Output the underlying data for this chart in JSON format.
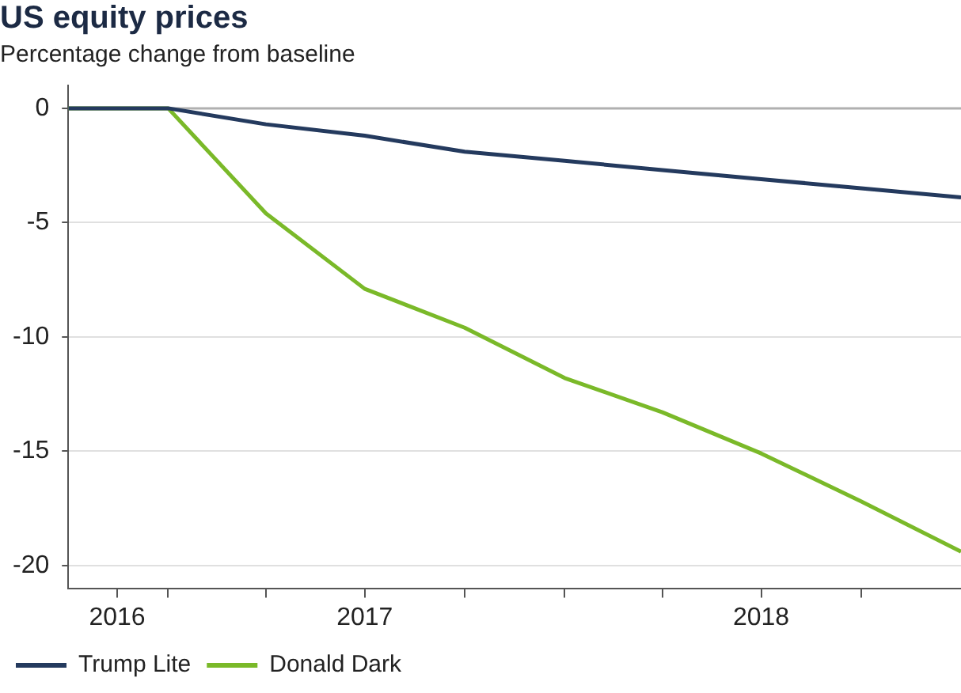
{
  "chart_data": {
    "type": "line",
    "title": "US equity prices",
    "subtitle": "Percentage change from baseline",
    "x": [
      "2016-10",
      "2017-01",
      "2017-04",
      "2017-07",
      "2017-10",
      "2018-01",
      "2018-04",
      "2018-07",
      "2018-10",
      "2019-01"
    ],
    "series": [
      {
        "name": "Trump Lite",
        "color": "#243a5e",
        "values": [
          0,
          0,
          -0.7,
          -1.2,
          -1.9,
          -2.3,
          -2.7,
          -3.1,
          -3.5,
          -3.9
        ]
      },
      {
        "name": "Donald Dark",
        "color": "#7ab929",
        "values": [
          0,
          0,
          -4.6,
          -7.9,
          -9.6,
          -11.8,
          -13.3,
          -15.1,
          -17.2,
          -19.4
        ]
      }
    ],
    "xlim": [
      "2016-10",
      "2019-01"
    ],
    "xticks": [
      {
        "value": "2016-11-15",
        "label": "2016"
      },
      {
        "value": "2017-01",
        "label": null
      },
      {
        "value": "2017-04",
        "label": null
      },
      {
        "value": "2017-07",
        "label": "2017"
      },
      {
        "value": "2017-10",
        "label": null
      },
      {
        "value": "2018-01",
        "label": null
      },
      {
        "value": "2018-04",
        "label": null
      },
      {
        "value": "2018-07",
        "label": "2018"
      },
      {
        "value": "2018-10",
        "label": null
      }
    ],
    "ylim": [
      -21,
      1
    ],
    "yticks": [
      0,
      -5,
      -10,
      -15,
      -20
    ],
    "ref_lines": [
      {
        "axis": "y",
        "value": 0,
        "color": "#b0b0b0"
      }
    ],
    "grid": "y",
    "legend": "bottom left",
    "marker": "none",
    "line_style": "solid"
  }
}
